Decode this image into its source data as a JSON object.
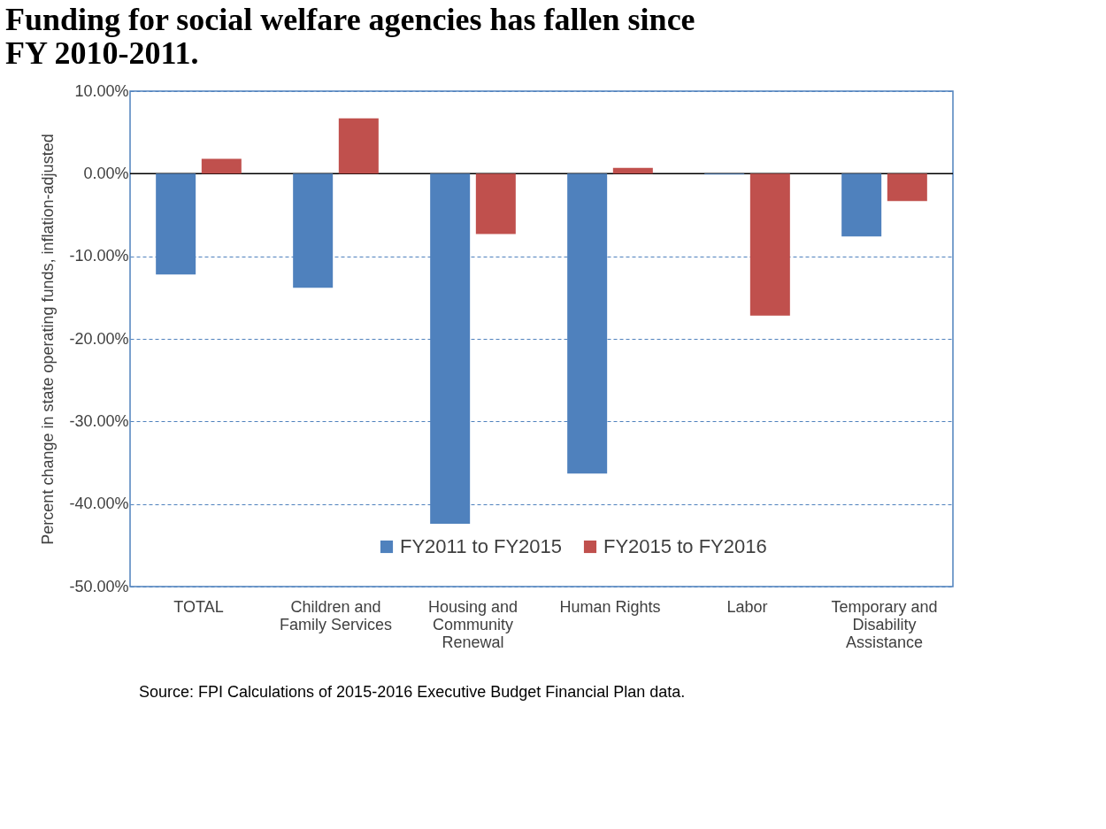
{
  "chart_data": {
    "type": "bar",
    "title": "Funding for social welfare agencies has fallen since FY 2010-2011.",
    "ylabel": "Percent change in state operating funds, inflation-adjusted",
    "categories": [
      "TOTAL",
      "Children and Family Services",
      "Housing and Community Renewal",
      "Human Rights",
      "Labor",
      "Temporary and Disability Assistance"
    ],
    "series": [
      {
        "name": "FY2011 to FY2015",
        "color": "#4f81bd",
        "values": [
          -12.2,
          -13.8,
          -42.4,
          -36.3,
          -0.1,
          -7.6
        ]
      },
      {
        "name": "FY2015 to FY2016",
        "color": "#c0504d",
        "values": [
          1.8,
          6.7,
          -7.3,
          0.7,
          -17.2,
          -3.3
        ]
      }
    ],
    "ylim": [
      -50,
      10
    ],
    "yticks": [
      {
        "value": -50,
        "label": "-50.00%"
      },
      {
        "value": -40,
        "label": "-40.00%"
      },
      {
        "value": -30,
        "label": "-30.00%"
      },
      {
        "value": -20,
        "label": "-20.00%"
      },
      {
        "value": -10,
        "label": "-10.00%"
      },
      {
        "value": 0,
        "label": "0.00%"
      },
      {
        "value": 10,
        "label": "10.00%"
      }
    ],
    "grid": "y",
    "legend": "bottom",
    "ref_lines": [
      {
        "axis": "y",
        "value": 0,
        "color": "#000000"
      }
    ],
    "annotations": [
      "Source: FPI Calculations of 2015-2016 Executive Budget Financial Plan data."
    ]
  }
}
